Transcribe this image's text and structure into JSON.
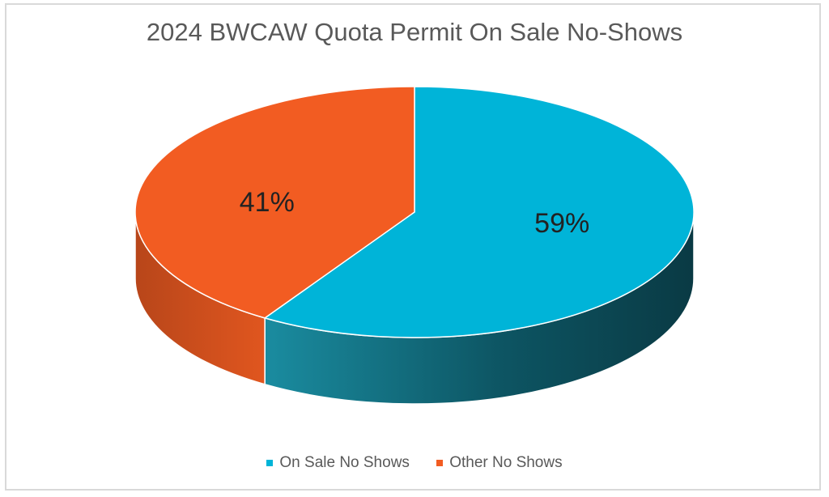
{
  "chart_data": {
    "type": "pie",
    "title": "2024 BWCAW Quota Permit On Sale No-Shows",
    "series": [
      {
        "name": "On Sale No Shows",
        "value": 59,
        "label": "59%",
        "color": "#00b4d8",
        "side_color": "#1a7a8c",
        "side_dark": "#0a3d47"
      },
      {
        "name": "Other No Shows",
        "value": 41,
        "label": "41%",
        "color": "#f25c22",
        "side_color": "#d9541f",
        "side_dark": "#a63d14"
      }
    ],
    "legend_position": "bottom",
    "style": "3d"
  }
}
